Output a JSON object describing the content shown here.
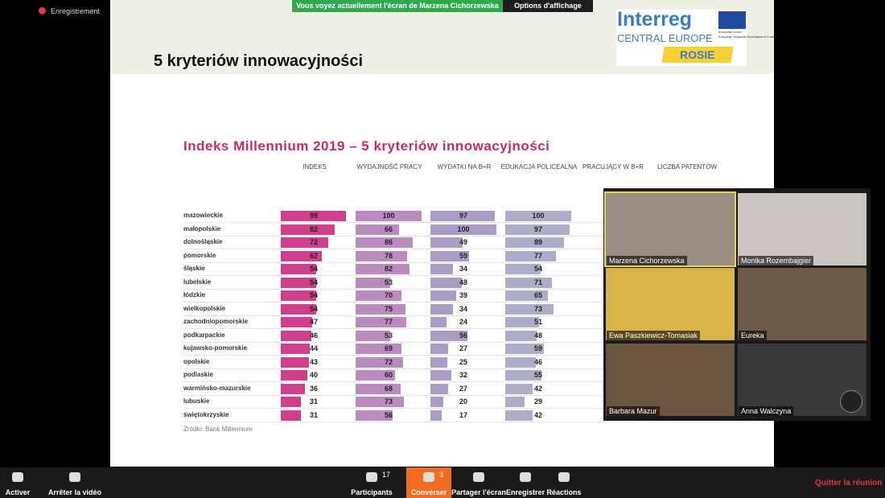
{
  "top_bar": {
    "recording": "Enregistrement",
    "banner": "Vous voyez actuellement l'écran de Marzena Cichorzewska",
    "view_options": "Options d'affichage"
  },
  "slide": {
    "title": "5 kryteriów innowacyjności",
    "logo": {
      "brand": "Interreg",
      "program": "CENTRAL EUROPE",
      "project": "ROSIE",
      "eu_line1": "European Union",
      "eu_line2": "European Regional Development Fund"
    },
    "chart": {
      "title": "Indeks Millennium 2019 – 5 kryteriów innowacyjności",
      "columns": [
        "INDEKS",
        "WYDAJNOŚĆ PRACY",
        "WYDATKI NA B+R",
        "EDUKACJA POLICEALNA",
        "PRACUJĄCY W B+R",
        "LICZBA PATENTÓW"
      ],
      "regions": [
        "mazowieckie",
        "małopolskie",
        "dolnośląskie",
        "pomorskie",
        "śląskie",
        "lubelskie",
        "łódzkie",
        "wielkopolskie",
        "zachodniopomorskie",
        "podkarpackie",
        "kujawsko-pomorskie",
        "opolskie",
        "podlaskie",
        "warmińsko-mazurskie",
        "lubuskie",
        "świętokrzyskie"
      ],
      "series": [
        {
          "name": "INDEKS",
          "color": "#cf3f8b",
          "values": [
            99,
            82,
            72,
            62,
            54,
            54,
            54,
            54,
            47,
            46,
            44,
            43,
            40,
            36,
            31,
            31
          ]
        },
        {
          "name": "WYDAJNOŚĆ PRACY",
          "color": "#b98bbf",
          "values": [
            100,
            66,
            86,
            78,
            82,
            53,
            70,
            75,
            77,
            53,
            69,
            72,
            60,
            68,
            73,
            56
          ]
        },
        {
          "name": "WYDATKI NA B+R",
          "color": "#ab9cc6",
          "values": [
            97,
            100,
            49,
            59,
            34,
            48,
            39,
            34,
            24,
            56,
            27,
            25,
            32,
            27,
            20,
            17
          ]
        },
        {
          "name": "EDUKACJA POLICEALNA",
          "color": "#adadc9",
          "values": [
            100,
            97,
            89,
            77,
            54,
            71,
            65,
            73,
            51,
            48,
            59,
            46,
            55,
            42,
            29,
            42
          ]
        }
      ],
      "source": "Źródło: Bank Millennium"
    }
  },
  "participants": [
    "Marzena Cichorzewska",
    "Monika Rozembajgier",
    "Ewa Paszkiewicz-Tomasiak",
    "Eureka",
    "Barbara Mazur",
    "Anna Walczyna"
  ],
  "toolbar": {
    "mute": "Activer",
    "video": "Arrêter la vidéo",
    "participants": "Participants",
    "participants_count": 17,
    "chat": "Converser",
    "chat_count": 3,
    "share": "Partager l'écran",
    "record": "Enregistrer",
    "reactions": "Réactions",
    "leave": "Quitter la réunion"
  }
}
